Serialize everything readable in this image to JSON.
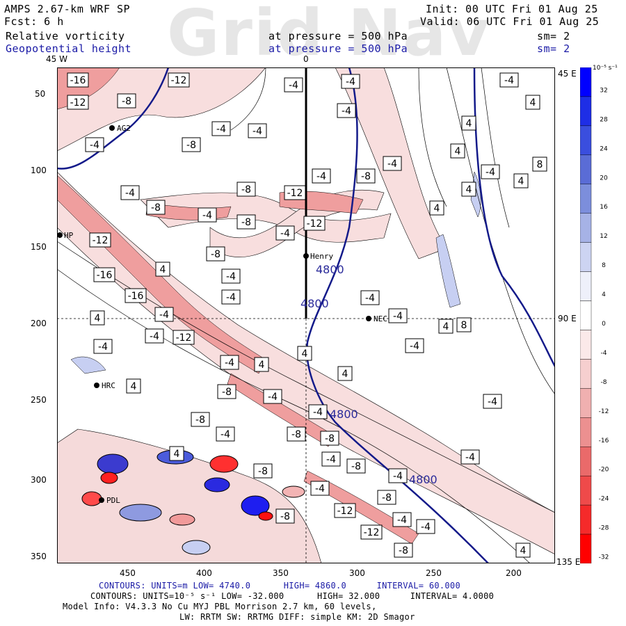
{
  "header": {
    "model": "AMPS 2.67-km WRF SP",
    "fcst": "Fcst:     6 h",
    "init": "Init: 00 UTC Fri 01 Aug 25",
    "valid": "Valid: 06 UTC Fri 01 Aug 25",
    "field1": "Relative vorticity",
    "field2": "Geopotential height",
    "pressure1": "at pressure =  500 hPa",
    "pressure2": "at pressure =  500 hPa",
    "sm1": "sm= 2",
    "sm2": "sm= 2",
    "watermark": "Grid Nav"
  },
  "map": {
    "lon_labels": {
      "left": "45 W",
      "center": "0",
      "right_top": "45 E",
      "right_mid": "90 E",
      "right_bottom": "135 E"
    },
    "y_ticks": [
      "50",
      "100",
      "150",
      "200",
      "250",
      "300",
      "350"
    ],
    "x_ticks": [
      "450",
      "400",
      "350",
      "300",
      "250",
      "200"
    ],
    "stations": [
      {
        "name": "AG2"
      },
      {
        "name": "Henry"
      },
      {
        "name": "NEC"
      },
      {
        "name": "HRC"
      },
      {
        "name": "PDL"
      },
      {
        "name": "HP"
      }
    ],
    "height_contour_label": "4800",
    "vort_labels": [
      "-16",
      "-12",
      "-8",
      "-4",
      "4",
      "8"
    ]
  },
  "colorbar": {
    "unit": "10⁻⁵ s⁻¹",
    "labels": [
      "32",
      "28",
      "24",
      "20",
      "16",
      "12",
      "8",
      "4",
      "0",
      "-4",
      "-8",
      "-12",
      "-16",
      "-20",
      "-24",
      "-28",
      "-32"
    ],
    "colors": [
      "#0000ff",
      "#1e2ee6",
      "#3a4ede",
      "#5a6cd6",
      "#7c8edc",
      "#a6b2e6",
      "#cdd4f2",
      "#eef0fa",
      "#ffffff",
      "#fbe9e9",
      "#f6cfcf",
      "#f0b0b0",
      "#ec9090",
      "#ea6a6a",
      "#ef4a4a",
      "#f52a2a",
      "#ff0000"
    ]
  },
  "footer": {
    "line1_parts": [
      "CONTOURS:  UNITS=m  LOW=  4740.0",
      "HIGH=  4860.0",
      "INTERVAL=   60.000"
    ],
    "line2_parts": [
      "CONTOURS:  UNITS=10⁻⁵ s⁻¹  LOW= -32.000",
      "HIGH=  32.000",
      "INTERVAL=   4.0000"
    ],
    "line3": "Model Info: V4.3.3    No Cu    MYJ PBL  Morrison          2.7 km,  60 levels,",
    "line4": "LW: RRTM SW: RRTMG   DIFF: simple KM: 2D Smagor"
  }
}
